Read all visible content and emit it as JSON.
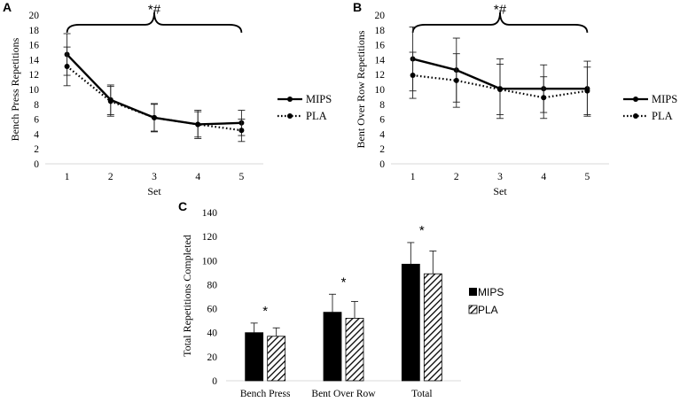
{
  "panel_labels": [
    "A",
    "B",
    "C"
  ],
  "chart_data": [
    {
      "type": "line",
      "panel": "A",
      "x": [
        1,
        2,
        3,
        4,
        5
      ],
      "xlabel": "Set",
      "ylabel": "Bench Press Repetitions",
      "ylim": [
        0,
        20
      ],
      "yticks": [
        0,
        2,
        4,
        6,
        8,
        10,
        12,
        14,
        16,
        18,
        20
      ],
      "series": [
        {
          "name": "MIPS",
          "style": "solid",
          "values": [
            14.7,
            8.6,
            6.2,
            5.3,
            5.5
          ],
          "errors": [
            2.8,
            2.0,
            1.9,
            1.9,
            1.7
          ]
        },
        {
          "name": "PLA",
          "style": "dotted",
          "values": [
            13.1,
            8.4,
            6.2,
            5.3,
            4.5
          ],
          "errors": [
            2.6,
            2.0,
            1.8,
            1.7,
            1.5
          ]
        }
      ],
      "annotation": "*#",
      "legend_position": "right"
    },
    {
      "type": "line",
      "panel": "B",
      "x": [
        1,
        2,
        3,
        4,
        5
      ],
      "xlabel": "Set",
      "ylabel": "Bent Over Row Repetitions",
      "ylim": [
        0,
        20
      ],
      "yticks": [
        0,
        2,
        4,
        6,
        8,
        10,
        12,
        14,
        16,
        18,
        20
      ],
      "series": [
        {
          "name": "MIPS",
          "style": "solid",
          "values": [
            14.1,
            12.6,
            10.1,
            10.1,
            10.1
          ],
          "errors": [
            4.3,
            4.3,
            4.0,
            3.2,
            3.7
          ]
        },
        {
          "name": "PLA",
          "style": "dotted",
          "values": [
            11.9,
            11.2,
            10.0,
            8.9,
            9.8
          ],
          "errors": [
            3.1,
            3.6,
            3.4,
            2.8,
            3.2
          ]
        }
      ],
      "annotation": "*#",
      "legend_position": "right"
    },
    {
      "type": "bar",
      "panel": "C",
      "categories": [
        "Bench Press",
        "Bent Over Row",
        "Total"
      ],
      "ylabel": "Total Repetitions Completed",
      "ylim": [
        0,
        140
      ],
      "yticks": [
        0,
        20,
        40,
        60,
        80,
        100,
        120,
        140
      ],
      "series": [
        {
          "name": "MIPS",
          "fill": "solid",
          "values": [
            40,
            57,
            97
          ],
          "errors": [
            8,
            15,
            18
          ]
        },
        {
          "name": "PLA",
          "fill": "hatched",
          "values": [
            37,
            52,
            89
          ],
          "errors": [
            7,
            14,
            19
          ]
        }
      ],
      "annotations": [
        "*",
        "*",
        "*"
      ],
      "legend_position": "right"
    }
  ],
  "colors": {
    "ink": "#000000",
    "axis": "#d9d9d9",
    "background": "#ffffff"
  }
}
